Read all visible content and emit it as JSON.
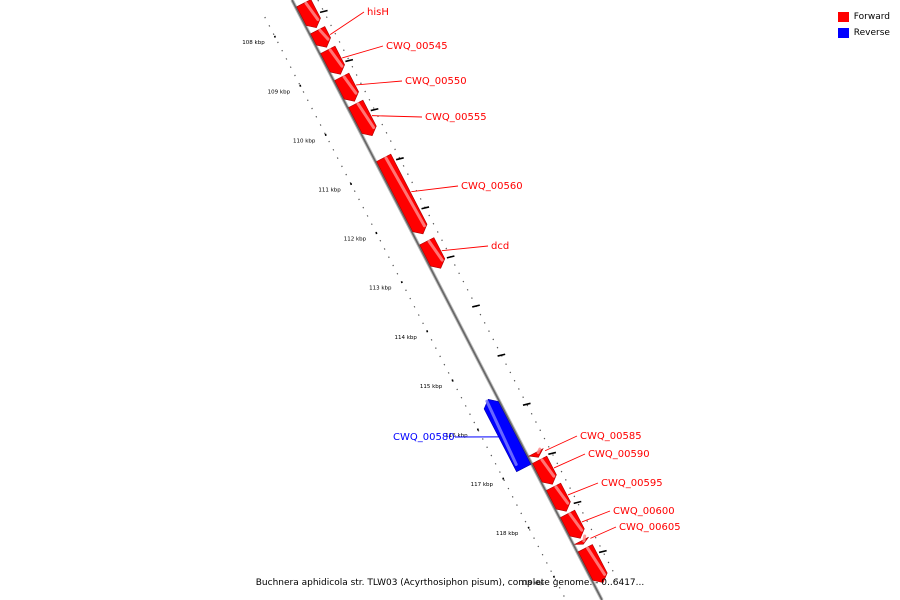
{
  "legend": {
    "forward": {
      "label": "Forward",
      "color": "#ff0000"
    },
    "reverse": {
      "label": "Reverse",
      "color": "#0000ff"
    }
  },
  "caption": "Buchnera aphidicola str. TLW03 (Acyrthosiphon pisum), complete genome. - 0..6417...",
  "ticks": [
    {
      "label": "108 kbp",
      "kbp": 108
    },
    {
      "label": "109 kbp",
      "kbp": 109
    },
    {
      "label": "110 kbp",
      "kbp": 110
    },
    {
      "label": "111 kbp",
      "kbp": 111
    },
    {
      "label": "112 kbp",
      "kbp": 112
    },
    {
      "label": "113 kbp",
      "kbp": 113
    },
    {
      "label": "114 kbp",
      "kbp": 114
    },
    {
      "label": "115 kbp",
      "kbp": 115
    },
    {
      "label": "116 kbp",
      "kbp": 116
    },
    {
      "label": "117 kbp",
      "kbp": 117
    },
    {
      "label": "118 kbp",
      "kbp": 118
    },
    {
      "label": "119 kbp",
      "kbp": 119
    }
  ],
  "genes": [
    {
      "name": "",
      "strand": "forward",
      "start": 107.7,
      "end": 108.2
    },
    {
      "name": "hisH",
      "strand": "forward",
      "start": 108.25,
      "end": 108.6
    },
    {
      "name": "CWQ_00545",
      "strand": "forward",
      "start": 108.65,
      "end": 109.15
    },
    {
      "name": "CWQ_00550",
      "strand": "forward",
      "start": 109.2,
      "end": 109.7
    },
    {
      "name": "CWQ_00555",
      "strand": "forward",
      "start": 109.75,
      "end": 110.4
    },
    {
      "name": "CWQ_00560",
      "strand": "forward",
      "start": 110.85,
      "end": 112.4
    },
    {
      "name": "dcd",
      "strand": "forward",
      "start": 112.55,
      "end": 113.1
    },
    {
      "name": "CWQ_00580",
      "strand": "reverse",
      "start": 115.6,
      "end": 117.0
    },
    {
      "name": "CWQ_00585",
      "strand": "forward",
      "start": 116.85,
      "end": 116.95
    },
    {
      "name": "CWQ_00590",
      "strand": "forward",
      "start": 117.0,
      "end": 117.5
    },
    {
      "name": "CWQ_00595",
      "strand": "forward",
      "start": 117.55,
      "end": 118.05
    },
    {
      "name": "CWQ_00600",
      "strand": "forward",
      "start": 118.1,
      "end": 118.6
    },
    {
      "name": "CWQ_00605",
      "strand": "forward",
      "start": 118.65,
      "end": 118.72
    },
    {
      "name": "",
      "strand": "forward",
      "start": 118.8,
      "end": 119.5
    }
  ]
}
